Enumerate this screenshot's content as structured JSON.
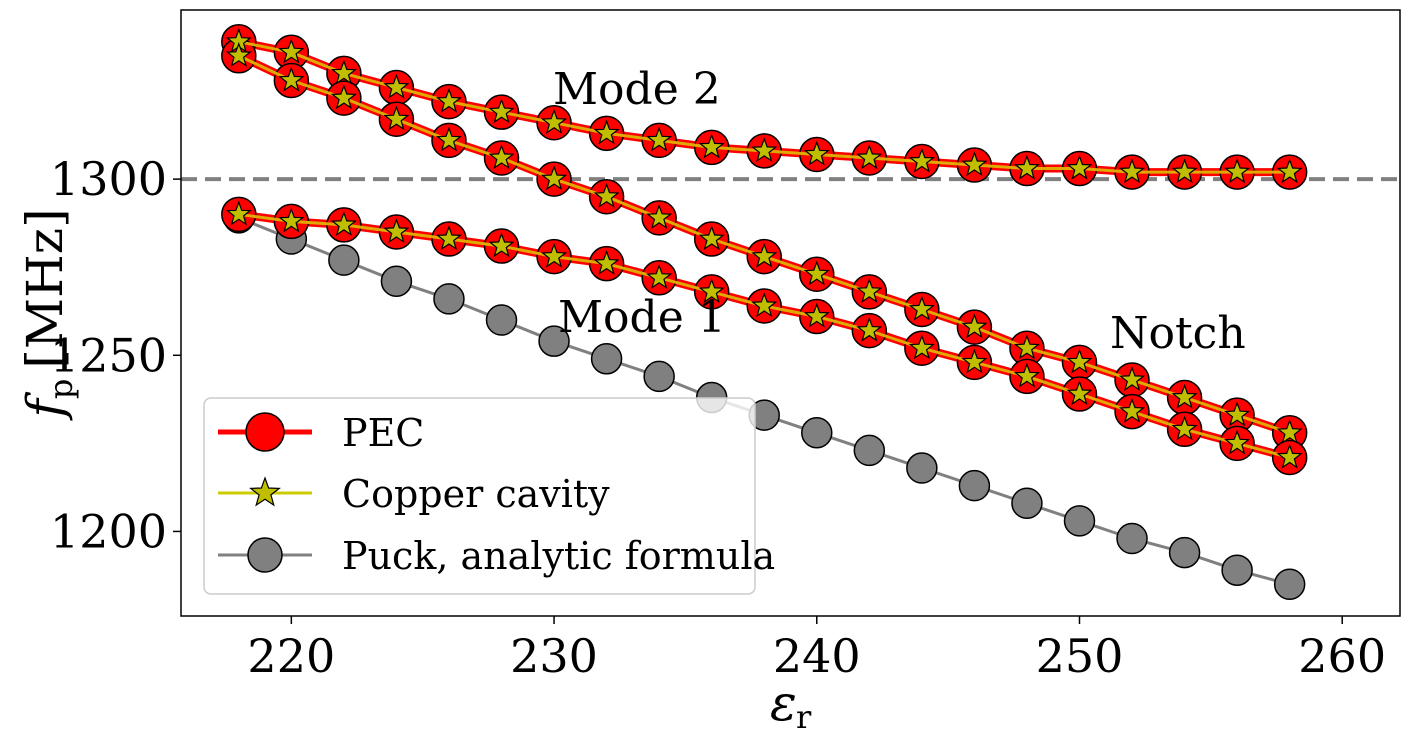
{
  "chart_data": {
    "type": "line",
    "xlabel": "ε",
    "xlabel_sub": "r",
    "ylabel": "f",
    "ylabel_sub": "p",
    "ylabel_unit": "[MHz]",
    "xlim": [
      215.8,
      262.2
    ],
    "ylim": [
      1176,
      1348
    ],
    "xticks": [
      220,
      230,
      240,
      250,
      260
    ],
    "yticks": [
      1200,
      1250,
      1300
    ],
    "reference_line": {
      "y": 1300,
      "color": "#808080",
      "style": "dashed"
    },
    "x": [
      218,
      220,
      222,
      224,
      226,
      228,
      230,
      232,
      234,
      236,
      238,
      240,
      242,
      244,
      246,
      248,
      250,
      252,
      254,
      256,
      258
    ],
    "series": [
      {
        "name": "PEC",
        "group": "Mode 2",
        "values": [
          1339,
          1336,
          1330,
          1326,
          1322,
          1319,
          1316,
          1313,
          1311,
          1309,
          1308,
          1307,
          1306,
          1305,
          1304,
          1303,
          1303,
          1302,
          1302,
          1302,
          1302
        ]
      },
      {
        "name": "PEC",
        "group": "Notch",
        "values": [
          1335,
          1328,
          1323,
          1317,
          1311,
          1306,
          1300,
          1295,
          1289,
          1283,
          1278,
          1273,
          1268,
          1263,
          1258,
          1252,
          1248,
          1243,
          1238,
          1233,
          1228
        ]
      },
      {
        "name": "PEC",
        "group": "Mode 1",
        "values": [
          1290,
          1288,
          1287,
          1285,
          1283,
          1281,
          1278,
          1276,
          1272,
          1268,
          1264,
          1261,
          1257,
          1252,
          1248,
          1244,
          1239,
          1234,
          1229,
          1225,
          1221
        ]
      },
      {
        "name": "Copper cavity",
        "group": "Mode 2",
        "values": [
          1339,
          1336,
          1330,
          1326,
          1322,
          1319,
          1316,
          1313,
          1311,
          1309,
          1308,
          1307,
          1306,
          1305,
          1304,
          1303,
          1303,
          1302,
          1302,
          1302,
          1302
        ]
      },
      {
        "name": "Copper cavity",
        "group": "Notch",
        "values": [
          1335,
          1328,
          1323,
          1317,
          1311,
          1306,
          1300,
          1295,
          1289,
          1283,
          1278,
          1273,
          1268,
          1263,
          1258,
          1252,
          1248,
          1243,
          1238,
          1233,
          1228
        ]
      },
      {
        "name": "Copper cavity",
        "group": "Mode 1",
        "values": [
          1290,
          1288,
          1287,
          1285,
          1283,
          1281,
          1278,
          1276,
          1272,
          1268,
          1264,
          1261,
          1257,
          1252,
          1248,
          1244,
          1239,
          1234,
          1229,
          1225,
          1221
        ]
      },
      {
        "name": "Puck, analytic formula",
        "group": "Puck",
        "values": [
          1289,
          1283,
          1277,
          1271,
          1266,
          1260,
          1254,
          1249,
          1244,
          1238,
          1233,
          1228,
          1223,
          1218,
          1213,
          1208,
          1203,
          1198,
          1194,
          1189,
          1185
        ]
      }
    ],
    "annotations": [
      {
        "text": "Mode 2",
        "x": 230,
        "y": 1322
      },
      {
        "text": "Mode 1",
        "x": 230,
        "y": 1258
      },
      {
        "text": "Notch",
        "x": 251,
        "y": 1253
      }
    ],
    "legend": {
      "position": "lower-left",
      "entries": [
        {
          "label": "PEC",
          "line_color": "#ff0000",
          "marker": "circle",
          "marker_color": "#ff0000"
        },
        {
          "label": "Copper cavity",
          "line_color": "#cccc00",
          "marker": "star",
          "marker_color": "#bfbf00"
        },
        {
          "label": "Puck, analytic formula",
          "line_color": "#808080",
          "marker": "circle",
          "marker_color": "#808080"
        }
      ]
    },
    "colors": {
      "pec": "#ff0000",
      "copper_line": "#e0a800",
      "copper_star": "#bfbf00",
      "puck": "#808080",
      "edge": "#000000"
    }
  }
}
